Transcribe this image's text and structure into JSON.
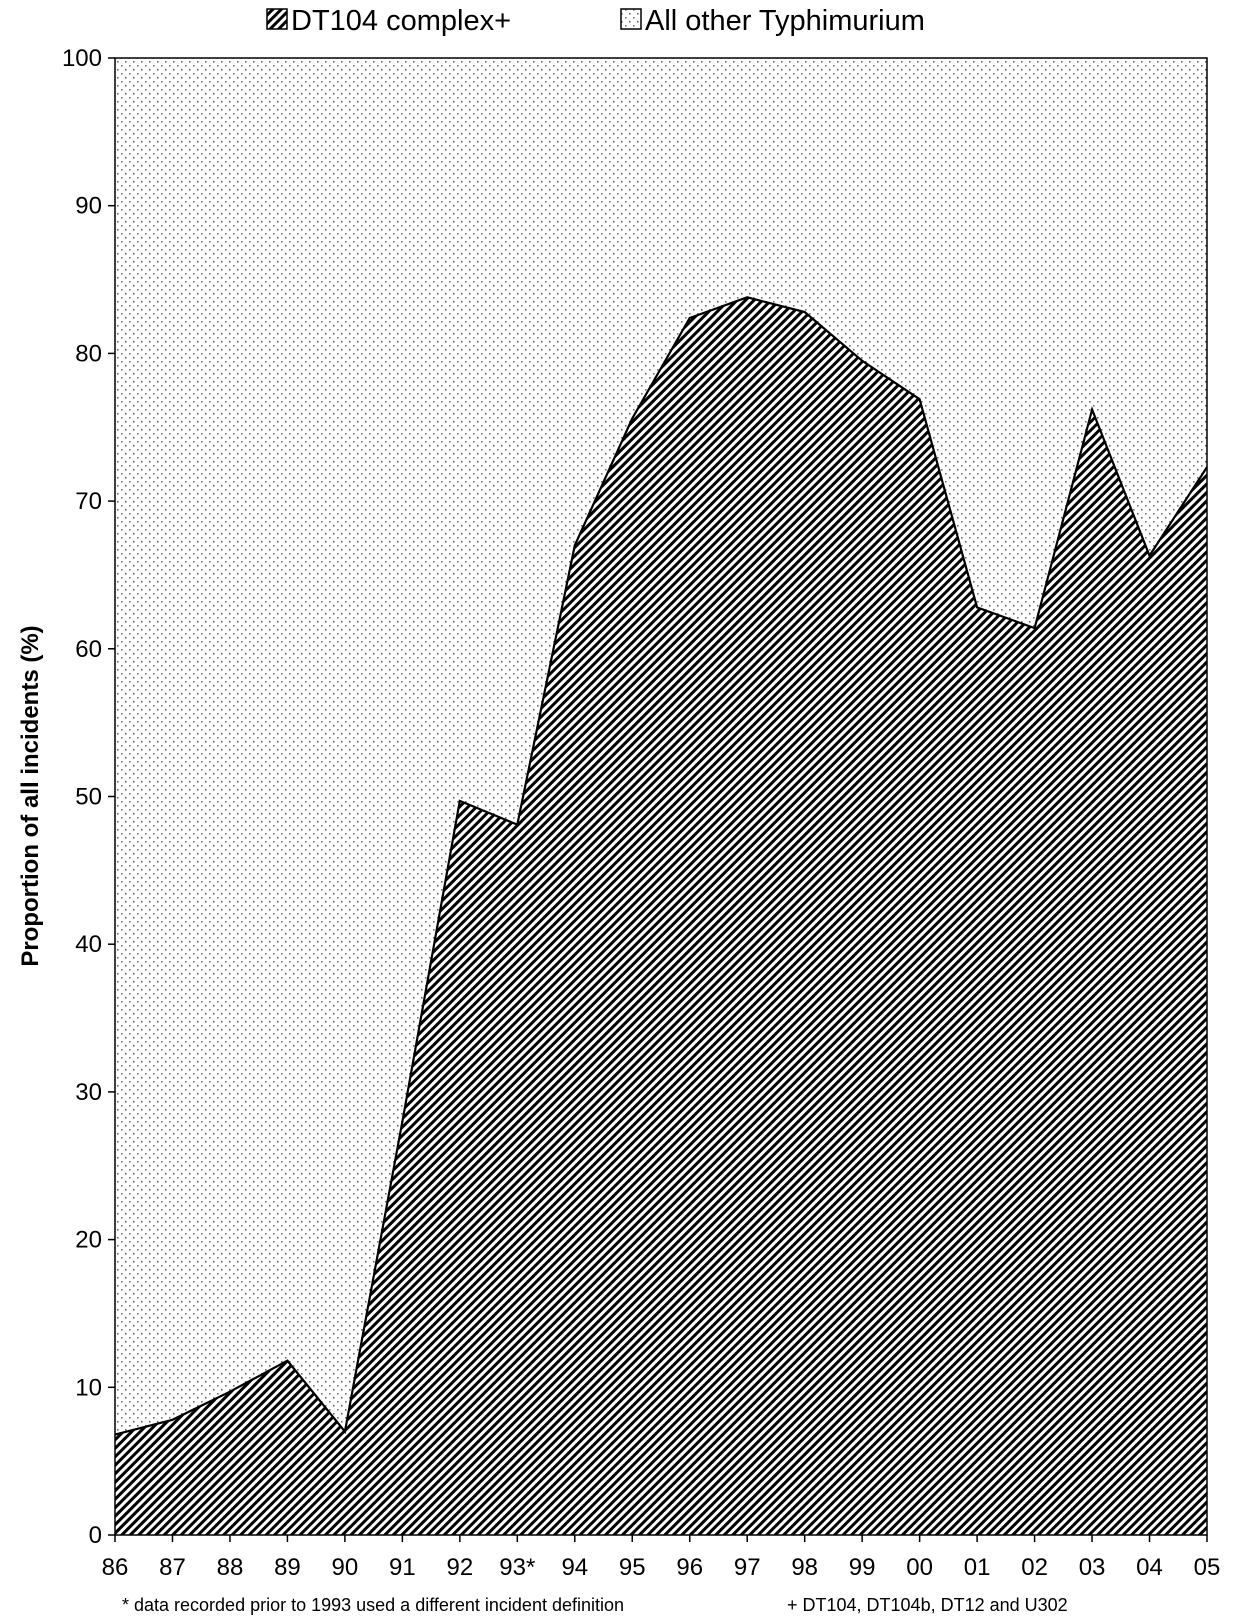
{
  "chart_data": {
    "type": "area",
    "stacked": "percent",
    "title": "",
    "xlabel": "",
    "ylabel": "Proportion of all incidents (%)",
    "ylim": [
      0,
      100
    ],
    "yticks": [
      0,
      10,
      20,
      30,
      40,
      50,
      60,
      70,
      80,
      90,
      100
    ],
    "categories": [
      "86",
      "87",
      "88",
      "89",
      "90",
      "91",
      "92",
      "93*",
      "94",
      "95",
      "96",
      "97",
      "98",
      "99",
      "00",
      "01",
      "02",
      "03",
      "04",
      "05"
    ],
    "series": [
      {
        "name": "DT104 complex+",
        "pattern": "diagonal-hatch",
        "values": [
          6.8,
          7.8,
          9.7,
          11.8,
          7.0,
          28.0,
          49.7,
          48.1,
          67.0,
          75.6,
          82.4,
          83.8,
          82.8,
          79.5,
          76.9,
          62.8,
          61.4,
          76.2,
          66.3,
          72.3
        ]
      },
      {
        "name": "All other Typhimurium",
        "pattern": "dots",
        "values": [
          93.2,
          92.2,
          90.3,
          88.2,
          93.0,
          72.0,
          50.3,
          51.9,
          33.0,
          24.4,
          17.6,
          16.2,
          17.2,
          20.5,
          23.1,
          37.2,
          38.6,
          23.8,
          33.7,
          27.7
        ]
      }
    ],
    "legend_position": "top-center",
    "grid": false,
    "colors": {
      "stroke": "#000000",
      "hatch": "#000000",
      "dots": "#777777",
      "background": "#ffffff"
    },
    "footnotes": [
      "* data recorded prior to 1993 used a different incident definition",
      "+ DT104, DT104b, DT12 and U302"
    ]
  }
}
